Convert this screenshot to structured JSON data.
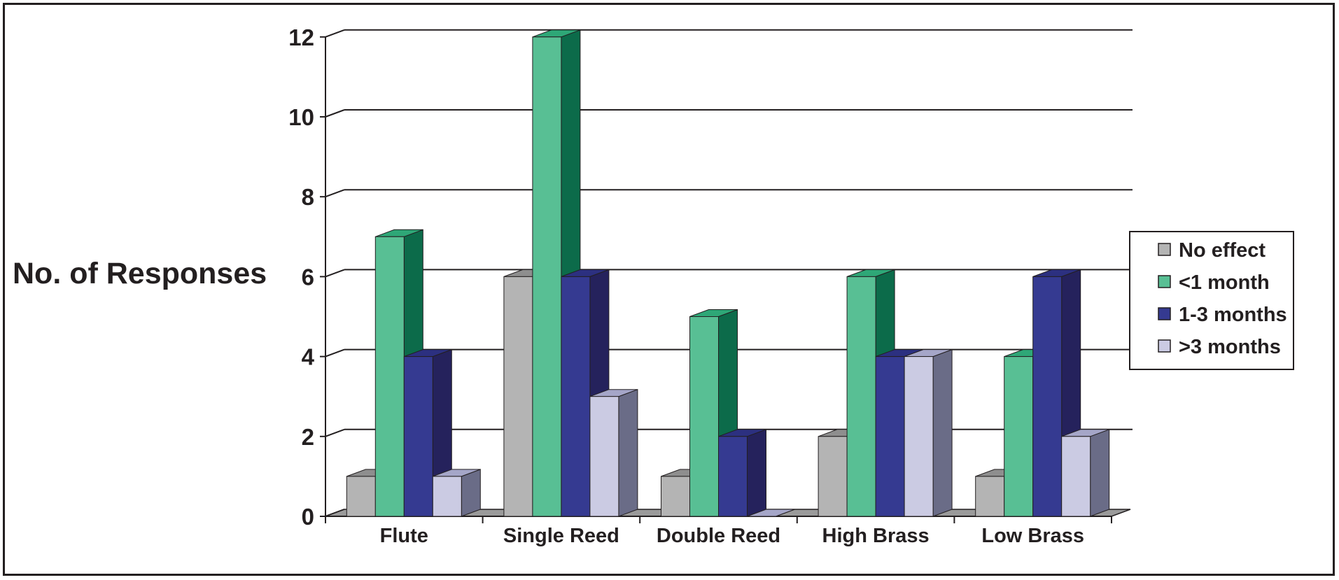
{
  "chart_data": {
    "type": "bar",
    "style": "3d-clustered-column",
    "ylabel": "No. of Responses",
    "xlabel": "",
    "title": "",
    "categories": [
      "Flute",
      "Single Reed",
      "Double Reed",
      "High Brass",
      "Low Brass"
    ],
    "ylim": [
      0,
      12
    ],
    "yticks": [
      0,
      2,
      4,
      6,
      8,
      10,
      12
    ],
    "grid": true,
    "legend_position": "right",
    "series": [
      {
        "name": "No effect",
        "values": [
          1,
          6,
          1,
          2,
          1
        ],
        "colors": {
          "front": "#b4b4b4",
          "top": "#8e8e8e",
          "side": "#6e6e6e"
        }
      },
      {
        "name": "<1 month",
        "values": [
          7,
          12,
          5,
          6,
          4
        ],
        "colors": {
          "front": "#58bf94",
          "top": "#2ea777",
          "side": "#0c6b4a"
        }
      },
      {
        "name": "1-3 months",
        "values": [
          4,
          6,
          2,
          4,
          6
        ],
        "colors": {
          "front": "#353a91",
          "top": "#2c3080",
          "side": "#25225c"
        }
      },
      {
        "name": ">3 months",
        "values": [
          1,
          3,
          0,
          4,
          2
        ],
        "colors": {
          "front": "#cbcbe3",
          "top": "#a5a6c8",
          "side": "#6a6c87"
        }
      }
    ]
  }
}
